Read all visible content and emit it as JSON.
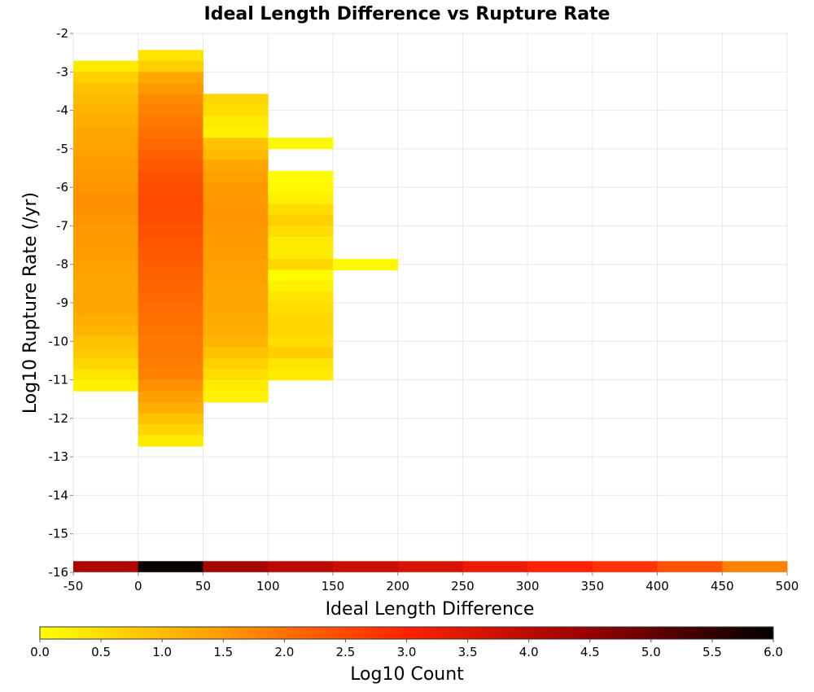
{
  "chart_data": {
    "type": "heatmap",
    "title": "Ideal Length Difference vs Rupture Rate",
    "xlabel": "Ideal Length Difference",
    "ylabel": "Log10 Rupture Rate (/yr)",
    "xlim": [
      -50,
      500
    ],
    "ylim": [
      -16,
      -2
    ],
    "x_ticks": [
      "-50",
      "0",
      "50",
      "100",
      "150",
      "200",
      "250",
      "300",
      "350",
      "400",
      "450",
      "500"
    ],
    "y_ticks": [
      "-2",
      "-3",
      "-4",
      "-5",
      "-6",
      "-7",
      "-8",
      "-9",
      "-10",
      "-11",
      "-12",
      "-13",
      "-14",
      "-15",
      "-16"
    ],
    "grid": true,
    "bin_width_x": 50,
    "bin_height_y": 0.286,
    "colorscale": {
      "label": "Log10 Count",
      "min": 0.0,
      "max": 6.0,
      "ticks": [
        "0.0",
        "0.5",
        "1.0",
        "1.5",
        "2.0",
        "2.5",
        "3.0",
        "3.5",
        "4.0",
        "4.5",
        "5.0",
        "5.5",
        "6.0"
      ],
      "stops": [
        "#ffff00",
        "#ff9900",
        "#ff2200",
        "#990000",
        "#000000"
      ]
    },
    "columns": [
      {
        "x0": -50,
        "x1": 0,
        "y_top": -2.71,
        "values": [
          0.3,
          0.7,
          0.9,
          1.0,
          1.1,
          1.2,
          1.3,
          1.35,
          1.4,
          1.45,
          1.5,
          1.55,
          1.6,
          1.6,
          1.55,
          1.5,
          1.5,
          1.45,
          1.4,
          1.35,
          1.3,
          1.35,
          1.3,
          1.2,
          1.1,
          0.9,
          0.8,
          0.6,
          0.4,
          0.2
        ]
      },
      {
        "x0": 0,
        "x1": 50,
        "y_top": -2.43,
        "values": [
          0.4,
          0.7,
          1.3,
          1.5,
          1.7,
          1.8,
          1.9,
          2.0,
          2.1,
          2.2,
          2.3,
          2.4,
          2.45,
          2.5,
          2.5,
          2.45,
          2.4,
          2.35,
          2.3,
          2.25,
          2.2,
          2.15,
          2.1,
          2.05,
          2.0,
          1.95,
          1.9,
          1.9,
          1.85,
          1.8,
          1.6,
          1.4,
          1.2,
          0.9,
          0.6,
          0.3
        ]
      },
      {
        "x0": 50,
        "x1": 100,
        "y_top": -3.57,
        "values": [
          0.6,
          0.5,
          0.3,
          0.2,
          0.9,
          1.0,
          1.3,
          1.4,
          1.5,
          1.5,
          1.55,
          1.55,
          1.5,
          1.5,
          1.45,
          1.4,
          1.4,
          1.35,
          1.3,
          1.3,
          1.25,
          1.2,
          1.1,
          0.9,
          0.7,
          0.5,
          0.3,
          0.2
        ]
      },
      {
        "x0": 100,
        "x1": 150,
        "y_top": -4.71,
        "values": [
          0.1
        ]
      },
      {
        "x0": 100,
        "x1": 150,
        "y_top": -5.57,
        "values": [
          0.05,
          0.1,
          0.2,
          0.5,
          0.7,
          0.5,
          0.3,
          0.3,
          0.6,
          0.05,
          0.2,
          0.4,
          0.5,
          0.6,
          0.6,
          0.5,
          0.7,
          0.4,
          0.3
        ]
      },
      {
        "x0": 150,
        "x1": 200,
        "y_top": -7.86,
        "values": [
          0.1
        ]
      },
      {
        "x0": -50,
        "x1": 500,
        "y_top": -15.71,
        "values": [
          4.2,
          5.9,
          4.3,
          4.0,
          3.8,
          3.6,
          3.3,
          3.0,
          2.8,
          2.4,
          1.8
        ]
      }
    ]
  }
}
